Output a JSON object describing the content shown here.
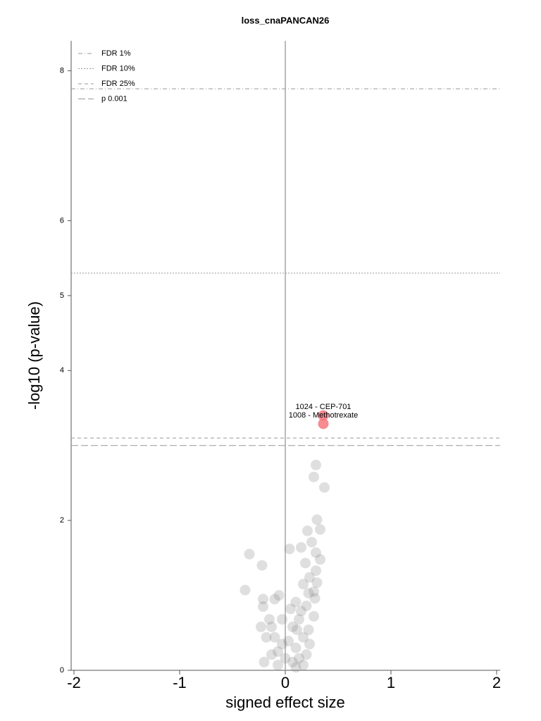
{
  "chart_data": {
    "type": "scatter",
    "title": "loss_cnaPANCAN26",
    "x_label": "signed effect size",
    "y_label": "-log10 (p-value)",
    "xlim": [
      -2,
      2
    ],
    "ylim": [
      0,
      8.4
    ],
    "xticks": [
      -2,
      -1,
      0,
      1,
      2
    ],
    "yticks": [
      0,
      2,
      4,
      5,
      6,
      8
    ],
    "zero_line": true,
    "thresholds": [
      {
        "name": "FDR 1%",
        "value": 7.76,
        "style": "dashdot"
      },
      {
        "name": "FDR 10%",
        "value": 5.3,
        "style": "dotted"
      },
      {
        "name": "FDR 25%",
        "value": 3.1,
        "style": "dashed"
      },
      {
        "name": "p 0.001",
        "value": 3.0,
        "style": "longdash"
      }
    ],
    "legend": "upper left",
    "points": {
      "color": "#808080",
      "x": [
        0.29,
        0.27,
        0.37,
        0.3,
        0.33,
        0.21,
        0.25,
        0.04,
        0.15,
        0.29,
        0.33,
        -0.34,
        -0.22,
        -0.38,
        -0.21,
        -0.21,
        -0.06,
        -0.1,
        -0.23,
        -0.15,
        0.19,
        0.23,
        0.17,
        0.27,
        0.1,
        0.2,
        0.27,
        0.13,
        0.07,
        0.22,
        0.17,
        0.03,
        0.1,
        -0.03,
        -0.1,
        -0.07,
        -0.13,
        -0.2,
        0.0,
        0.07,
        0.13,
        0.2,
        0.23,
        -0.07,
        0.1,
        0.17,
        -0.13,
        -0.18,
        -0.03,
        0.05,
        0.29,
        0.22,
        0.15,
        0.11,
        0.28,
        0.3
      ],
      "y": [
        2.74,
        2.58,
        2.44,
        2.01,
        1.88,
        1.86,
        1.71,
        1.62,
        1.64,
        1.57,
        1.48,
        1.55,
        1.4,
        1.07,
        0.95,
        0.85,
        1.0,
        0.95,
        0.58,
        0.68,
        1.43,
        1.24,
        1.15,
        1.05,
        0.91,
        0.86,
        0.72,
        0.68,
        0.58,
        0.54,
        0.44,
        0.39,
        0.3,
        0.35,
        0.44,
        0.25,
        0.21,
        0.11,
        0.16,
        0.11,
        0.16,
        0.21,
        0.35,
        0.07,
        0.04,
        0.07,
        0.58,
        0.44,
        0.68,
        0.82,
        1.33,
        1.03,
        0.79,
        0.54,
        0.96,
        1.17
      ]
    },
    "highlights": {
      "color": "#f4777f",
      "x": [
        0.36,
        0.36
      ],
      "y": [
        3.4,
        3.29
      ],
      "labels": [
        "1024 - CEP-701",
        "1008 - Methotrexate"
      ]
    }
  }
}
